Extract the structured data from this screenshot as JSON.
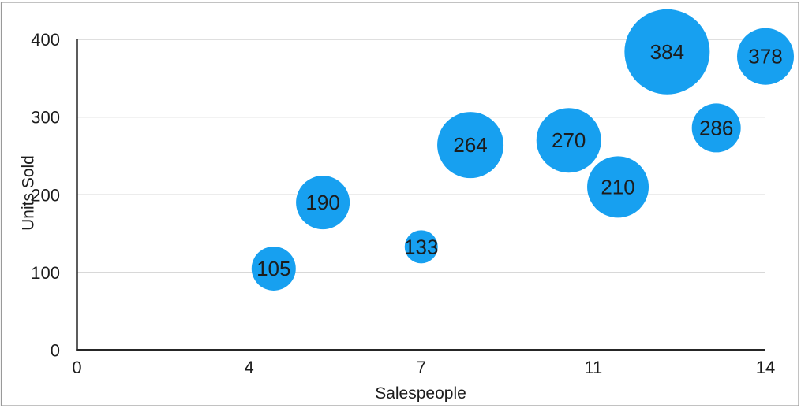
{
  "chart_data": {
    "type": "bubble",
    "title": "",
    "xlabel": "Salespeople",
    "ylabel": "Units Sold",
    "xlim": [
      0,
      14
    ],
    "ylim": [
      0,
      400
    ],
    "x_ticks": {
      "positions": [
        0,
        3.5,
        7,
        10.5,
        14
      ],
      "labels": [
        "0",
        "4",
        "7",
        "11",
        "14"
      ]
    },
    "y_ticks": {
      "positions": [
        0,
        100,
        200,
        300,
        400
      ],
      "labels": [
        "0",
        "100",
        "200",
        "300",
        "400"
      ]
    },
    "grid": "horizontal",
    "legend": "none",
    "points": [
      {
        "x": 4,
        "y": 105,
        "label": "105",
        "radius_px": 28
      },
      {
        "x": 5,
        "y": 190,
        "label": "190",
        "radius_px": 34
      },
      {
        "x": 7,
        "y": 133,
        "label": "133",
        "radius_px": 21
      },
      {
        "x": 8,
        "y": 264,
        "label": "264",
        "radius_px": 42
      },
      {
        "x": 10,
        "y": 270,
        "label": "270",
        "radius_px": 41
      },
      {
        "x": 11,
        "y": 210,
        "label": "210",
        "radius_px": 39
      },
      {
        "x": 12,
        "y": 384,
        "label": "384",
        "radius_px": 54
      },
      {
        "x": 13,
        "y": 286,
        "label": "286",
        "radius_px": 31
      },
      {
        "x": 14,
        "y": 378,
        "label": "378",
        "radius_px": 36
      }
    ]
  },
  "colors": {
    "bubble": "#17A0F0",
    "bubble_label": "#111111",
    "grid": "#cccccc",
    "axis": "#262626",
    "tick_text": "#1c1c1c",
    "frame_border": "#999999",
    "background": "#ffffff"
  }
}
